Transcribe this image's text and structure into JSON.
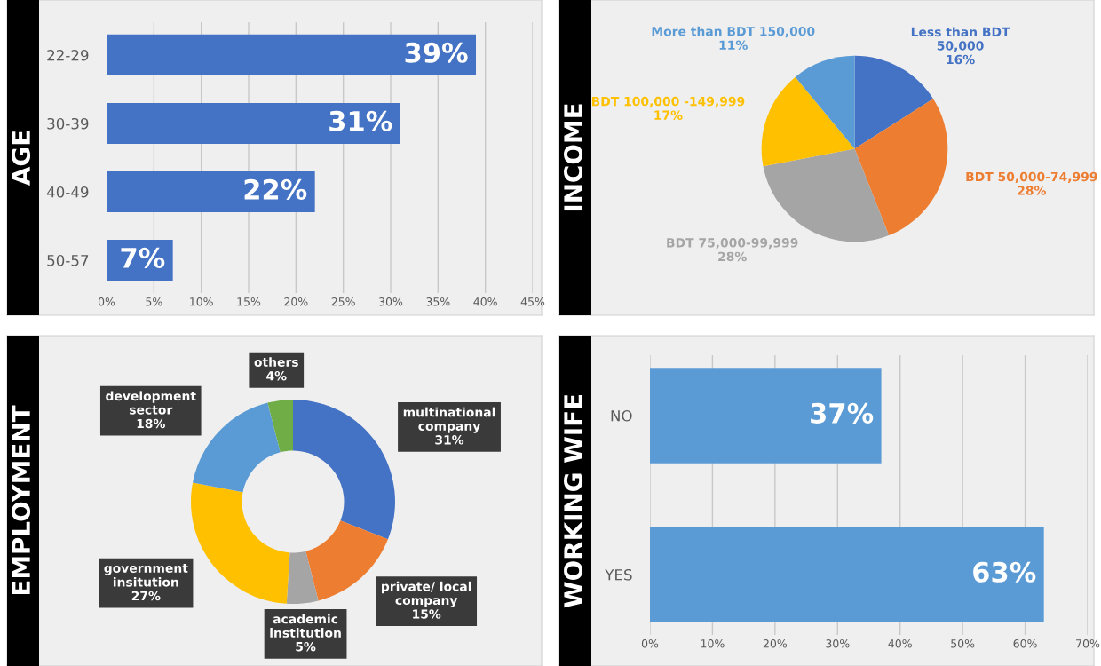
{
  "chart_data": [
    {
      "type": "bar",
      "title": "AGE",
      "orientation": "horizontal",
      "categories": [
        "22-29",
        "30-39",
        "40-49",
        "50-57"
      ],
      "values": [
        39,
        31,
        22,
        7
      ],
      "value_labels": [
        "39%",
        "31%",
        "22%",
        "7%"
      ],
      "color": "#4472c4",
      "xlim": [
        0,
        45
      ],
      "xticks": [
        {
          "value": 0,
          "label": "0%"
        },
        {
          "value": 5,
          "label": "5%"
        },
        {
          "value": 10,
          "label": "10%"
        },
        {
          "value": 15,
          "label": "15%"
        },
        {
          "value": 20,
          "label": "20%"
        },
        {
          "value": 25,
          "label": "25%"
        },
        {
          "value": 30,
          "label": "30%"
        },
        {
          "value": 35,
          "label": "35%"
        },
        {
          "value": 40,
          "label": "40%"
        },
        {
          "value": 45,
          "label": "45%"
        }
      ],
      "grid": "x"
    },
    {
      "type": "pie",
      "title": "INCOME",
      "categories": [
        "Less than BDT\n50,000",
        "BDT 50,000-74,999",
        "BDT 75,000-99,999",
        "BDT 100,000 -149,999",
        "More than BDT 150,000"
      ],
      "values": [
        16,
        28,
        28,
        17,
        11
      ],
      "value_labels": [
        "16%",
        "28%",
        "28%",
        "17%",
        "11%"
      ],
      "colors": [
        "#4472c4",
        "#ed7d31",
        "#a5a5a5",
        "#ffc000",
        "#5b9bd5"
      ]
    },
    {
      "type": "donut",
      "title": "EMPLOYMENT",
      "categories": [
        "multinational\ncompany",
        "private/ local\ncompany",
        "academic\ninstitution",
        "government\ninsitution",
        "development\nsector",
        "others"
      ],
      "values": [
        31,
        15,
        5,
        27,
        18,
        4
      ],
      "value_labels": [
        "31%",
        "15%",
        "5%",
        "27%",
        "18%",
        "4%"
      ],
      "colors": [
        "#4472c4",
        "#ed7d31",
        "#a5a5a5",
        "#ffc000",
        "#5b9bd5",
        "#70ad47"
      ]
    },
    {
      "type": "bar",
      "title": "WORKING WIFE",
      "orientation": "horizontal",
      "categories": [
        "NO",
        "YES"
      ],
      "values": [
        37,
        63
      ],
      "value_labels": [
        "37%",
        "63%"
      ],
      "color": "#5b9bd5",
      "xlim": [
        0,
        70
      ],
      "xticks": [
        {
          "value": 0,
          "label": "0%"
        },
        {
          "value": 10,
          "label": "10%"
        },
        {
          "value": 20,
          "label": "20%"
        },
        {
          "value": 30,
          "label": "30%"
        },
        {
          "value": 40,
          "label": "40%"
        },
        {
          "value": 50,
          "label": "50%"
        },
        {
          "value": 60,
          "label": "60%"
        },
        {
          "value": 70,
          "label": "70%"
        }
      ],
      "grid": "x"
    }
  ]
}
